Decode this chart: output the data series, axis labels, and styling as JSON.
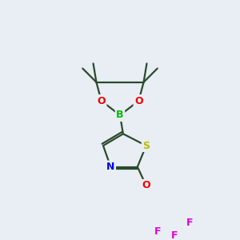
{
  "background_color": "#e8eef4",
  "bond_color": "#2d4a2d",
  "atom_colors": {
    "B": "#00bb00",
    "O": "#ee0000",
    "S": "#bbbb00",
    "N": "#0000ee",
    "F": "#dd00dd",
    "C": "#2d4a2d"
  },
  "bond_width": 1.6,
  "figsize": [
    3.0,
    3.0
  ],
  "dpi": 100
}
